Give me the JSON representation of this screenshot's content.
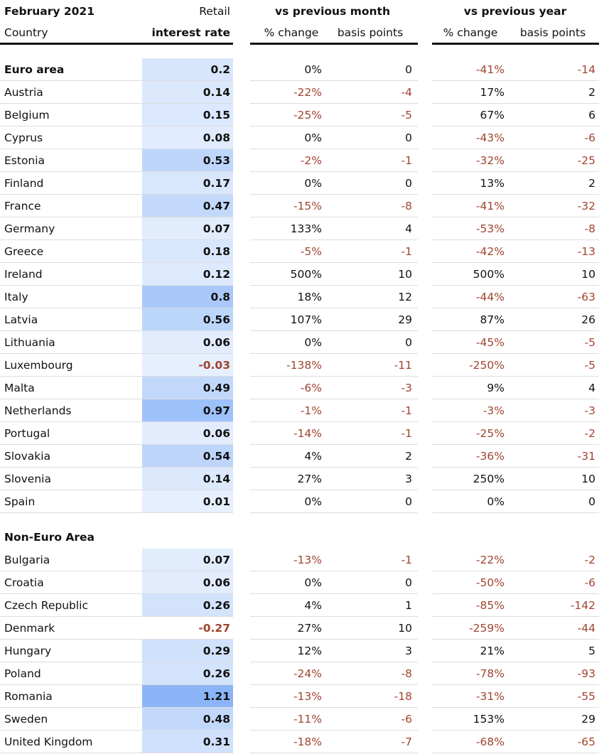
{
  "header": {
    "period": "February 2021",
    "rate_top": "Retail",
    "country": "Country",
    "rate_bottom": "interest rate",
    "month": "vs previous month",
    "year": "vs previous year",
    "month_pct": "% change",
    "month_bp": "basis points",
    "year_pct": "% change",
    "year_bp": "basis points"
  },
  "groups": [
    {
      "title": "Euro area",
      "summary": [
        0.2,
        "0%",
        0,
        "-41%",
        -14
      ],
      "rows": [
        [
          "Austria",
          0.14,
          "-22%",
          -4,
          "17%",
          2
        ],
        [
          "Belgium",
          0.15,
          "-25%",
          -5,
          "67%",
          6
        ],
        [
          "Cyprus",
          0.08,
          "0%",
          0,
          "-43%",
          -6
        ],
        [
          "Estonia",
          0.53,
          "-2%",
          -1,
          "-32%",
          -25
        ],
        [
          "Finland",
          0.17,
          "0%",
          0,
          "13%",
          2
        ],
        [
          "France",
          0.47,
          "-15%",
          -8,
          "-41%",
          -32
        ],
        [
          "Germany",
          0.07,
          "133%",
          4,
          "-53%",
          -8
        ],
        [
          "Greece",
          0.18,
          "-5%",
          -1,
          "-42%",
          -13
        ],
        [
          "Ireland",
          0.12,
          "500%",
          10,
          "500%",
          10
        ],
        [
          "Italy",
          0.8,
          "18%",
          12,
          "-44%",
          -63
        ],
        [
          "Latvia",
          0.56,
          "107%",
          29,
          "87%",
          26
        ],
        [
          "Lithuania",
          0.06,
          "0%",
          0,
          "-45%",
          -5
        ],
        [
          "Luxembourg",
          -0.03,
          "-138%",
          -11,
          "-250%",
          -5
        ],
        [
          "Malta",
          0.49,
          "-6%",
          -3,
          "9%",
          4
        ],
        [
          "Netherlands",
          0.97,
          "-1%",
          -1,
          "-3%",
          -3
        ],
        [
          "Portugal",
          0.06,
          "-14%",
          -1,
          "-25%",
          -2
        ],
        [
          "Slovakia",
          0.54,
          "4%",
          2,
          "-36%",
          -31
        ],
        [
          "Slovenia",
          0.14,
          "27%",
          3,
          "250%",
          10
        ],
        [
          "Spain",
          0.01,
          "0%",
          0,
          "0%",
          0
        ]
      ]
    },
    {
      "title": "Non-Euro Area",
      "rows": [
        [
          "Bulgaria",
          0.07,
          "-13%",
          -1,
          "-22%",
          -2
        ],
        [
          "Croatia",
          0.06,
          "0%",
          0,
          "-50%",
          -6
        ],
        [
          "Czech Republic",
          0.26,
          "4%",
          1,
          "-85%",
          -142
        ],
        [
          "Denmark",
          -0.27,
          "27%",
          10,
          "-259%",
          -44
        ],
        [
          "Hungary",
          0.29,
          "12%",
          3,
          "21%",
          5
        ],
        [
          "Poland",
          0.26,
          "-24%",
          -8,
          "-78%",
          -93
        ],
        [
          "Romania",
          1.21,
          "-13%",
          -18,
          "-31%",
          -55
        ],
        [
          "Sweden",
          0.48,
          "-11%",
          -6,
          "153%",
          29
        ],
        [
          "United Kingdom",
          0.31,
          "-18%",
          -7,
          "-68%",
          -65
        ]
      ]
    }
  ]
}
